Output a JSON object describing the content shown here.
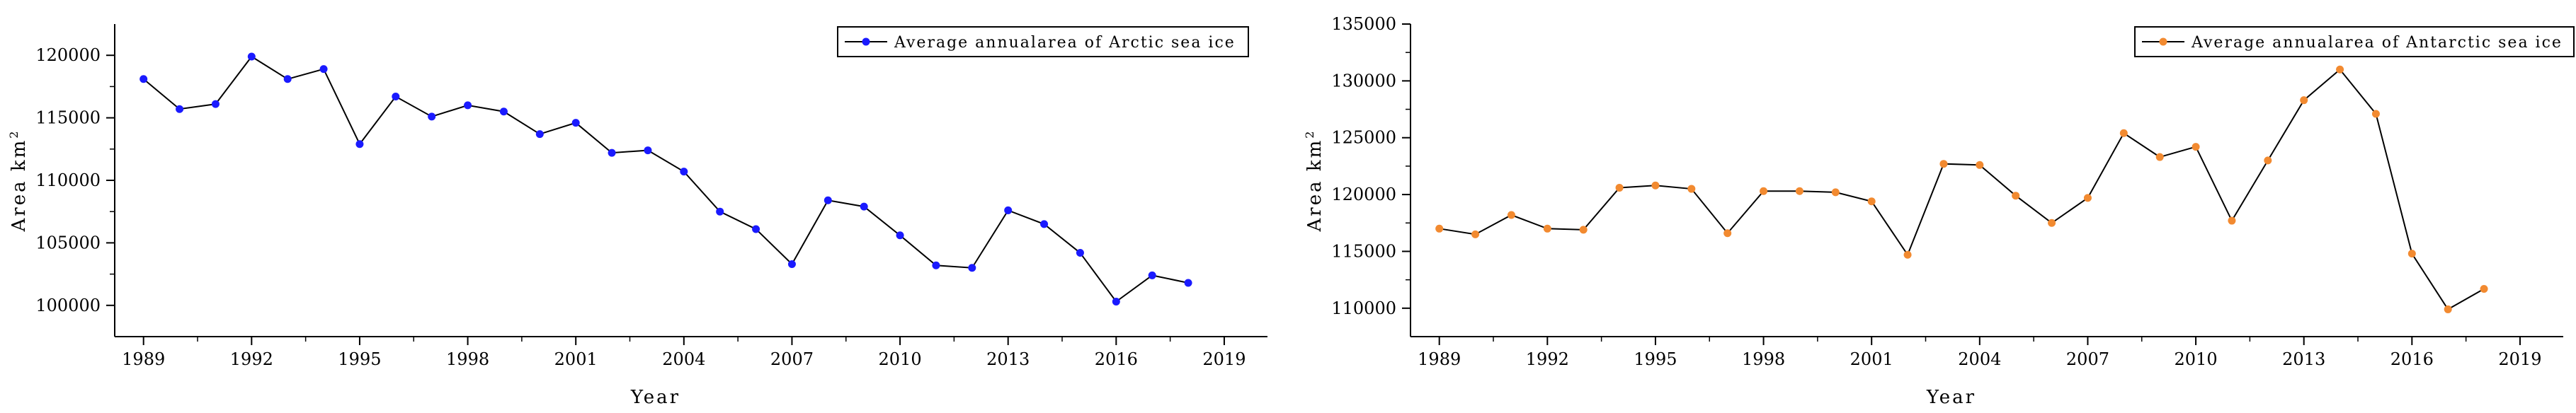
{
  "chart_data": [
    {
      "type": "line",
      "xlabel": "Year",
      "ylabel": "Area km",
      "ylabel_superscript": "2",
      "x_ticks": [
        1989,
        1992,
        1995,
        1998,
        2001,
        2004,
        2007,
        2010,
        2013,
        2016,
        2019
      ],
      "x_tick_labels": [
        "1989",
        "1992",
        "1995",
        "1998",
        "2001",
        "2004",
        "2007",
        "2010",
        "2013",
        "2016",
        "2019"
      ],
      "xlim": [
        1988.2,
        2020.2
      ],
      "y_ticks": [
        100000,
        105000,
        110000,
        115000,
        120000
      ],
      "y_tick_labels": [
        "100000",
        "105000",
        "110000",
        "115000",
        "120000"
      ],
      "ylim": [
        97500,
        122500
      ],
      "series": [
        {
          "name": "Average annualarea of Arctic sea ice",
          "color": "#1a1aff",
          "x": [
            1989,
            1990,
            1991,
            1992,
            1993,
            1994,
            1995,
            1996,
            1997,
            1998,
            1999,
            2000,
            2001,
            2002,
            2003,
            2004,
            2005,
            2006,
            2007,
            2008,
            2009,
            2010,
            2011,
            2012,
            2013,
            2014,
            2015,
            2016,
            2017,
            2018
          ],
          "values": [
            118100,
            115700,
            116100,
            119900,
            118100,
            118900,
            112900,
            116700,
            115100,
            116000,
            115500,
            113700,
            114600,
            112200,
            112400,
            110700,
            107500,
            106100,
            103300,
            108400,
            107900,
            105600,
            103200,
            103000,
            107600,
            106500,
            104200,
            100300,
            102400,
            101800
          ]
        }
      ],
      "legend": "top-right"
    },
    {
      "type": "line",
      "xlabel": "Year",
      "ylabel": "Area km",
      "ylabel_superscript": "2",
      "x_ticks": [
        1989,
        1992,
        1995,
        1998,
        2001,
        2004,
        2007,
        2010,
        2013,
        2016,
        2019
      ],
      "x_tick_labels": [
        "1989",
        "1992",
        "1995",
        "1998",
        "2001",
        "2004",
        "2007",
        "2010",
        "2013",
        "2016",
        "2019"
      ],
      "xlim": [
        1988.2,
        2020.2
      ],
      "y_ticks": [
        110000,
        115000,
        120000,
        125000,
        130000,
        135000
      ],
      "y_tick_labels": [
        "110000",
        "115000",
        "120000",
        "125000",
        "130000",
        "135000"
      ],
      "ylim": [
        107500,
        135000
      ],
      "series": [
        {
          "name": "Average annualarea of Antarctic sea ice",
          "color": "#f28a30",
          "x": [
            1989,
            1990,
            1991,
            1992,
            1993,
            1994,
            1995,
            1996,
            1997,
            1998,
            1999,
            2000,
            2001,
            2002,
            2003,
            2004,
            2005,
            2006,
            2007,
            2008,
            2009,
            2010,
            2011,
            2012,
            2013,
            2014,
            2015,
            2016,
            2017,
            2018
          ],
          "values": [
            117000,
            116500,
            118200,
            117000,
            116900,
            120600,
            120800,
            120500,
            116600,
            120300,
            120300,
            120200,
            119400,
            114700,
            122700,
            122600,
            119900,
            117500,
            119700,
            125400,
            123300,
            124200,
            117700,
            123000,
            128300,
            131000,
            127100,
            114800,
            109900,
            111700
          ]
        }
      ],
      "legend": "top-right"
    }
  ]
}
